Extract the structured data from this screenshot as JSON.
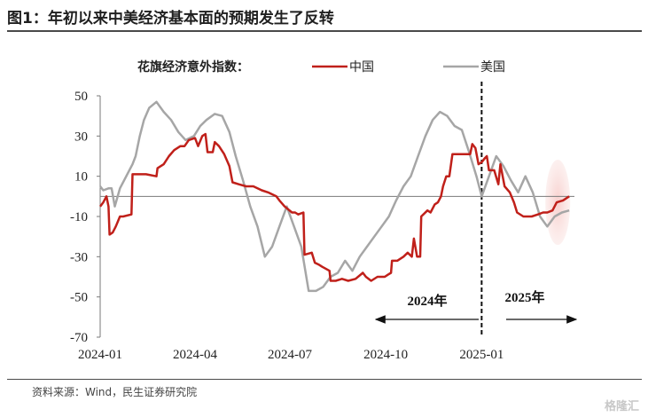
{
  "header": {
    "title": "图1：年初以来中美经济基本面的预期发生了反转"
  },
  "footer": {
    "source": "资料来源：Wind，民生证券研究院",
    "watermark": "格隆汇"
  },
  "chart_data": {
    "type": "line",
    "legend_title": "花旗经济意外指数：",
    "legend_position": "top",
    "ylim": [
      -70,
      50
    ],
    "yticks": [
      50,
      30,
      10,
      -10,
      -30,
      -50,
      -70
    ],
    "xlim": [
      "2024-01-01",
      "2025-03-31"
    ],
    "xticks": [
      "2024-01-01",
      "2024-04-01",
      "2024-07-01",
      "2024-10-01",
      "2025-01-01"
    ],
    "xtick_labels": [
      "2024-01",
      "2024-04",
      "2024-07",
      "2024-10",
      "2025-01"
    ],
    "zero_line": true,
    "grid": false,
    "divider_date": "2025-01-01",
    "annotations": [
      {
        "text": "2024年",
        "arrow": "left"
      },
      {
        "text": "2025年",
        "arrow": "right"
      }
    ],
    "series": [
      {
        "name": "中国",
        "color": "#c0201a",
        "points": [
          [
            "2024-01-01",
            -5
          ],
          [
            "2024-01-04",
            -3
          ],
          [
            "2024-01-07",
            0
          ],
          [
            "2024-01-09",
            -5
          ],
          [
            "2024-01-10",
            -19
          ],
          [
            "2024-01-13",
            -18
          ],
          [
            "2024-01-16",
            -15
          ],
          [
            "2024-01-20",
            -10
          ],
          [
            "2024-01-23",
            -10
          ],
          [
            "2024-01-31",
            -9
          ],
          [
            "2024-02-01",
            11
          ],
          [
            "2024-02-14",
            11
          ],
          [
            "2024-02-24",
            10
          ],
          [
            "2024-02-25",
            14
          ],
          [
            "2024-03-02",
            16
          ],
          [
            "2024-03-07",
            20
          ],
          [
            "2024-03-12",
            23
          ],
          [
            "2024-03-18",
            25
          ],
          [
            "2024-03-22",
            25
          ],
          [
            "2024-03-26",
            28
          ],
          [
            "2024-04-01",
            29
          ],
          [
            "2024-04-04",
            25
          ],
          [
            "2024-04-08",
            30
          ],
          [
            "2024-04-11",
            31
          ],
          [
            "2024-04-13",
            22
          ],
          [
            "2024-04-18",
            22
          ],
          [
            "2024-04-20",
            27
          ],
          [
            "2024-04-24",
            25
          ],
          [
            "2024-04-29",
            21
          ],
          [
            "2024-05-04",
            15
          ],
          [
            "2024-05-07",
            7
          ],
          [
            "2024-05-13",
            6
          ],
          [
            "2024-05-20",
            5
          ],
          [
            "2024-05-27",
            5
          ],
          [
            "2024-06-04",
            3
          ],
          [
            "2024-06-10",
            2
          ],
          [
            "2024-06-18",
            0
          ],
          [
            "2024-06-21",
            -2
          ],
          [
            "2024-06-26",
            -5
          ],
          [
            "2024-07-03",
            -8
          ],
          [
            "2024-07-06",
            -8
          ],
          [
            "2024-07-09",
            -9
          ],
          [
            "2024-07-14",
            -8
          ],
          [
            "2024-07-15",
            -29
          ],
          [
            "2024-07-22",
            -28
          ],
          [
            "2024-07-25",
            -33
          ],
          [
            "2024-07-29",
            -34
          ],
          [
            "2024-08-01",
            -35
          ],
          [
            "2024-08-08",
            -37
          ],
          [
            "2024-08-09",
            -42
          ],
          [
            "2024-08-14",
            -42
          ],
          [
            "2024-08-20",
            -41
          ],
          [
            "2024-08-26",
            -42
          ],
          [
            "2024-09-02",
            -41
          ],
          [
            "2024-09-09",
            -38
          ],
          [
            "2024-09-12",
            -40
          ],
          [
            "2024-09-17",
            -42
          ],
          [
            "2024-09-23",
            -40
          ],
          [
            "2024-09-30",
            -40
          ],
          [
            "2024-10-03",
            -39
          ],
          [
            "2024-10-06",
            -38
          ],
          [
            "2024-10-07",
            -32
          ],
          [
            "2024-10-12",
            -32
          ],
          [
            "2024-10-18",
            -30
          ],
          [
            "2024-10-22",
            -28
          ],
          [
            "2024-10-26",
            -30
          ],
          [
            "2024-10-28",
            -21
          ],
          [
            "2024-10-31",
            -30
          ],
          [
            "2024-11-03",
            -30
          ],
          [
            "2024-11-04",
            -10
          ],
          [
            "2024-11-10",
            -7
          ],
          [
            "2024-11-13",
            -8
          ],
          [
            "2024-11-17",
            -4
          ],
          [
            "2024-11-20",
            -3
          ],
          [
            "2024-11-23",
            0
          ],
          [
            "2024-11-25",
            5
          ],
          [
            "2024-11-28",
            10
          ],
          [
            "2024-12-01",
            10
          ],
          [
            "2024-12-04",
            21
          ],
          [
            "2024-12-16",
            21
          ],
          [
            "2024-12-21",
            21
          ],
          [
            "2024-12-23",
            26
          ],
          [
            "2024-12-26",
            24
          ],
          [
            "2024-12-29",
            16
          ],
          [
            "2025-01-01",
            17
          ],
          [
            "2025-01-04",
            19
          ],
          [
            "2025-01-06",
            20
          ],
          [
            "2025-01-08",
            13
          ],
          [
            "2025-01-13",
            13
          ],
          [
            "2025-01-17",
            6
          ],
          [
            "2025-01-19",
            16
          ],
          [
            "2025-01-23",
            5
          ],
          [
            "2025-01-28",
            2
          ],
          [
            "2025-02-01",
            -3
          ],
          [
            "2025-02-04",
            -8
          ],
          [
            "2025-02-10",
            -10
          ],
          [
            "2025-02-18",
            -10
          ],
          [
            "2025-02-24",
            -9
          ],
          [
            "2025-03-01",
            -8
          ],
          [
            "2025-03-05",
            -8
          ],
          [
            "2025-03-10",
            -7
          ],
          [
            "2025-03-14",
            -3
          ],
          [
            "2025-03-20",
            -2
          ],
          [
            "2025-03-26",
            0
          ]
        ]
      },
      {
        "name": "美国",
        "color": "#a6a6a6",
        "points": [
          [
            "2024-01-01",
            5
          ],
          [
            "2024-01-04",
            3
          ],
          [
            "2024-01-09",
            4
          ],
          [
            "2024-01-12",
            4
          ],
          [
            "2024-01-15",
            -5
          ],
          [
            "2024-01-20",
            4
          ],
          [
            "2024-01-26",
            10
          ],
          [
            "2024-02-01",
            16
          ],
          [
            "2024-02-04",
            20
          ],
          [
            "2024-02-08",
            30
          ],
          [
            "2024-02-12",
            38
          ],
          [
            "2024-02-17",
            44
          ],
          [
            "2024-02-24",
            47
          ],
          [
            "2024-03-02",
            42
          ],
          [
            "2024-03-09",
            38
          ],
          [
            "2024-03-16",
            32
          ],
          [
            "2024-03-23",
            28
          ],
          [
            "2024-03-31",
            30
          ],
          [
            "2024-04-06",
            35
          ],
          [
            "2024-04-12",
            38
          ],
          [
            "2024-04-20",
            41
          ],
          [
            "2024-04-27",
            40
          ],
          [
            "2024-05-04",
            32
          ],
          [
            "2024-05-10",
            20
          ],
          [
            "2024-05-17",
            8
          ],
          [
            "2024-05-24",
            -5
          ],
          [
            "2024-05-31",
            -15
          ],
          [
            "2024-06-07",
            -30
          ],
          [
            "2024-06-14",
            -25
          ],
          [
            "2024-06-21",
            -15
          ],
          [
            "2024-06-28",
            -5
          ],
          [
            "2024-07-05",
            -15
          ],
          [
            "2024-07-12",
            -25
          ],
          [
            "2024-07-19",
            -47
          ],
          [
            "2024-07-26",
            -47
          ],
          [
            "2024-08-02",
            -45
          ],
          [
            "2024-08-09",
            -40
          ],
          [
            "2024-08-16",
            -38
          ],
          [
            "2024-08-23",
            -32
          ],
          [
            "2024-08-30",
            -37
          ],
          [
            "2024-09-06",
            -30
          ],
          [
            "2024-09-13",
            -25
          ],
          [
            "2024-09-20",
            -20
          ],
          [
            "2024-09-27",
            -15
          ],
          [
            "2024-10-04",
            -10
          ],
          [
            "2024-10-11",
            -2
          ],
          [
            "2024-10-18",
            5
          ],
          [
            "2024-10-25",
            10
          ],
          [
            "2024-11-01",
            20
          ],
          [
            "2024-11-08",
            30
          ],
          [
            "2024-11-15",
            38
          ],
          [
            "2024-11-22",
            42
          ],
          [
            "2024-11-29",
            40
          ],
          [
            "2024-12-06",
            35
          ],
          [
            "2024-12-13",
            33
          ],
          [
            "2024-12-20",
            22
          ],
          [
            "2024-12-27",
            10
          ],
          [
            "2025-01-01",
            0
          ],
          [
            "2025-01-08",
            10
          ],
          [
            "2025-01-15",
            20
          ],
          [
            "2025-01-22",
            15
          ],
          [
            "2025-01-29",
            8
          ],
          [
            "2025-02-05",
            2
          ],
          [
            "2025-02-12",
            10
          ],
          [
            "2025-02-19",
            2
          ],
          [
            "2025-02-26",
            -10
          ],
          [
            "2025-03-05",
            -15
          ],
          [
            "2025-03-12",
            -10
          ],
          [
            "2025-03-19",
            -8
          ],
          [
            "2025-03-26",
            -7
          ]
        ]
      }
    ]
  }
}
